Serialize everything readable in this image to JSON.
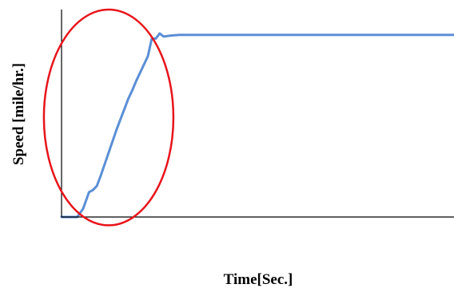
{
  "chart_data": {
    "type": "line",
    "title": "",
    "xlabel": "Time[Sec.]",
    "ylabel": "Speed  [mile/hr.]",
    "xlim": [
      0,
      100
    ],
    "ylim": [
      0,
      100
    ],
    "grid": false,
    "legend": "none",
    "series": [
      {
        "color": "#5b8fd6",
        "x": [
          0,
          3,
          4,
          5.5,
          7,
          8,
          9,
          10,
          11,
          12,
          13,
          14,
          15,
          16,
          17,
          18,
          19,
          20,
          21,
          22,
          23,
          24,
          25,
          26,
          28,
          30,
          35,
          45,
          60,
          80,
          100
        ],
        "y": [
          0,
          0,
          0,
          4,
          12,
          13,
          15,
          20,
          25.5,
          31,
          36.5,
          42,
          47,
          52,
          57,
          61,
          65.5,
          69.5,
          73.5,
          77.5,
          86,
          86,
          88.5,
          87,
          87.5,
          87.8,
          87.8,
          87.8,
          87.8,
          87.8,
          87.8
        ]
      }
    ],
    "annotations": [
      {
        "type": "ellipse",
        "color": "#e8141b",
        "cx": 12,
        "cy": 48,
        "rx": 16.5,
        "ry": 52
      }
    ]
  }
}
